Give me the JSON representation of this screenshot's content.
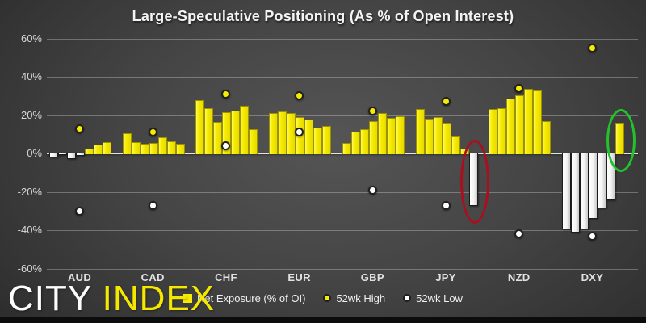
{
  "title": "Large-Speculative Positioning (As % of Open Interest)",
  "logo": {
    "city": "CITY",
    "index": "INDEX"
  },
  "legend": {
    "net_exposure": "Net Exposure (% of OI)",
    "high": "52wk High",
    "low": "52wk Low"
  },
  "colors": {
    "bar_positive": "#f6ec00",
    "bar_negative": "#ffffff",
    "high_dot": "#f6ec00",
    "low_dot": "#ffffff",
    "annotation_red": "#a90f1d",
    "annotation_green": "#23c22b",
    "background": "#3f3f3f",
    "text": "#f0f0f0"
  },
  "chart_data": {
    "type": "bar",
    "title": "Large-Speculative Positioning (As % of Open Interest)",
    "xlabel": "",
    "ylabel": "",
    "ylim": [
      -60,
      60
    ],
    "grid": true,
    "legend_position": "bottom",
    "yticks": [
      {
        "label": "60%",
        "value": 60
      },
      {
        "label": "40%",
        "value": 40
      },
      {
        "label": "20%",
        "value": 20
      },
      {
        "label": "0%",
        "value": 0
      },
      {
        "label": "-20%",
        "value": -20
      },
      {
        "label": "-40%",
        "value": -40
      },
      {
        "label": "-60%",
        "value": -60
      }
    ],
    "categories": [
      "AUD",
      "CAD",
      "CHF",
      "EUR",
      "GBP",
      "JPY",
      "NZD",
      "DXY"
    ],
    "series": [
      {
        "name": "Net Exposure (% of OI)",
        "type": "bar",
        "note": "7 weekly bars per currency, oldest to latest",
        "values_per_category": [
          [
            -1.5,
            -0.5,
            -2.5,
            -1,
            2.5,
            4.5,
            6
          ],
          [
            10.5,
            6,
            5,
            5.5,
            8.5,
            6.5,
            5
          ],
          [
            28,
            23.5,
            16.5,
            21.5,
            22.5,
            25,
            12.5
          ],
          [
            21,
            22,
            21,
            19,
            17.5,
            13.5,
            14.5
          ],
          [
            5.5,
            11.5,
            12.5,
            17,
            21,
            18.5,
            19.5
          ],
          [
            23,
            18,
            19,
            16,
            9,
            2.5,
            -27
          ],
          [
            23,
            23.5,
            28.5,
            30.5,
            33.5,
            33,
            17
          ],
          [
            -39,
            -41,
            -39,
            -33.5,
            -28,
            -24,
            16
          ]
        ]
      },
      {
        "name": "52wk High",
        "type": "point",
        "values": [
          13,
          11,
          31,
          30,
          22,
          27,
          34,
          55
        ]
      },
      {
        "name": "52wk Low",
        "type": "point",
        "values": [
          -30,
          -27,
          4,
          11,
          -19,
          -27,
          -42,
          -43
        ]
      }
    ],
    "annotations": [
      {
        "shape": "ellipse",
        "color": "#a90f1d",
        "category": "JPY",
        "bar_index": 6,
        "meaning": "latest JPY bar flipped negative"
      },
      {
        "shape": "ellipse",
        "color": "#23c22b",
        "category": "DXY",
        "bar_index": 6,
        "meaning": "latest DXY bar flipped positive"
      }
    ]
  }
}
